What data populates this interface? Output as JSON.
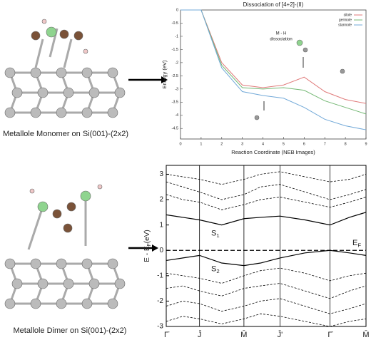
{
  "figure": {
    "captions": [
      "Metallole Monomer on Si(001)-(2x2)",
      "Metallole Dimer on Si(001)-(2x2)"
    ],
    "orbital_labels": [
      {
        "text": "S",
        "sub": "1"
      },
      {
        "text": "S",
        "sub": "2"
      }
    ]
  },
  "chart_data": [
    {
      "type": "line",
      "title": "Dissociation of [4+2]-(II)",
      "x_label": "Reaction Coordinate (NEB Images)",
      "y_label": "Energy (eV)",
      "x": [
        0,
        1,
        2,
        3,
        4,
        5,
        6,
        7,
        8,
        9
      ],
      "series": [
        {
          "name": "silole",
          "color": "#e07a7a",
          "values": [
            0,
            0,
            -2.0,
            -2.85,
            -2.95,
            -2.85,
            -2.55,
            -3.1,
            -3.4,
            -3.55
          ]
        },
        {
          "name": "germole",
          "color": "#74b874",
          "values": [
            0,
            0,
            -2.1,
            -2.95,
            -3.0,
            -2.95,
            -3.05,
            -3.45,
            -3.7,
            -3.95
          ]
        },
        {
          "name": "stannole",
          "color": "#72a9d8",
          "values": [
            0,
            0,
            -2.2,
            -3.1,
            -3.25,
            -3.35,
            -3.7,
            -4.15,
            -4.4,
            -4.55
          ]
        }
      ],
      "xlim": [
        0,
        9
      ],
      "xticks": [
        0,
        1,
        2,
        3,
        4,
        5,
        6,
        7,
        8,
        9
      ],
      "ylim": [
        -4.9,
        0
      ],
      "yticks": [
        0,
        -0.5,
        -1,
        -1.5,
        -2,
        -2.5,
        -3,
        -3.5,
        -4,
        -4.5
      ],
      "annotation": [
        "M - H",
        "dissociation"
      ],
      "legend": "top-right"
    },
    {
      "type": "bands",
      "y_label": {
        "main": "E - E",
        "sub": "F",
        "unit": "(eV)"
      },
      "x": [
        0,
        0.3,
        0.6,
        1.0,
        1.4,
        1.7,
        2.05,
        2.5,
        2.95,
        3.3,
        3.6
      ],
      "series": [
        {
          "color": "#000000",
          "dashed": false,
          "values": [
            1.4,
            1.3,
            1.2,
            1.0,
            1.25,
            1.3,
            1.35,
            1.2,
            1.0,
            1.3,
            1.5
          ]
        },
        {
          "color": "#000000",
          "dashed": false,
          "values": [
            -0.4,
            -0.3,
            -0.2,
            -0.5,
            -0.6,
            -0.5,
            -0.3,
            -0.1,
            0.0,
            -0.1,
            -0.2
          ]
        },
        {
          "color": "#000000",
          "dashed": true,
          "values": [
            2.7,
            2.5,
            2.3,
            2.0,
            2.2,
            2.5,
            2.6,
            2.3,
            2.0,
            2.2,
            2.4
          ]
        },
        {
          "color": "#000000",
          "dashed": true,
          "values": [
            2.2,
            2.0,
            1.9,
            1.6,
            1.8,
            2.0,
            2.1,
            1.9,
            1.7,
            1.9,
            2.1
          ]
        },
        {
          "color": "#000000",
          "dashed": true,
          "values": [
            3.0,
            2.9,
            2.8,
            2.6,
            2.8,
            3.0,
            3.1,
            2.9,
            2.7,
            2.8,
            3.0
          ]
        },
        {
          "color": "#000000",
          "dashed": true,
          "values": [
            -0.9,
            -1.0,
            -1.1,
            -1.3,
            -1.0,
            -0.8,
            -0.7,
            -0.9,
            -1.2,
            -1.0,
            -0.9
          ]
        },
        {
          "color": "#000000",
          "dashed": true,
          "values": [
            -1.5,
            -1.4,
            -1.6,
            -1.8,
            -1.5,
            -1.4,
            -1.3,
            -1.6,
            -1.9,
            -1.6,
            -1.4
          ]
        },
        {
          "color": "#000000",
          "dashed": true,
          "values": [
            -2.2,
            -2.0,
            -2.1,
            -2.4,
            -2.2,
            -2.0,
            -1.9,
            -2.2,
            -2.5,
            -2.3,
            -2.1
          ]
        },
        {
          "color": "#000000",
          "dashed": true,
          "values": [
            -2.8,
            -2.6,
            -2.7,
            -2.9,
            -2.7,
            -2.5,
            -2.6,
            -2.8,
            -3.0,
            -2.8,
            -2.7
          ]
        }
      ],
      "xlim": [
        0,
        3.6
      ],
      "xticks": [
        {
          "value": 0,
          "label": "Γ̄"
        },
        {
          "value": 0.6,
          "label": "J̄"
        },
        {
          "value": 1.4,
          "label": "M̄"
        },
        {
          "value": 2.05,
          "label": "J̄'"
        },
        {
          "value": 2.95,
          "label": "Γ̄"
        },
        {
          "value": 3.6,
          "label": "M̄"
        }
      ],
      "ylim": [
        -3,
        3.35
      ],
      "yticks": [
        -3,
        -2,
        -1,
        0,
        1,
        2,
        3
      ],
      "fermi_level": 0,
      "fermi_label": {
        "text": "E",
        "sub": "F"
      },
      "band_labels": [
        {
          "text": "S",
          "sub": "1"
        },
        {
          "text": "S",
          "sub": "2"
        }
      ]
    }
  ]
}
